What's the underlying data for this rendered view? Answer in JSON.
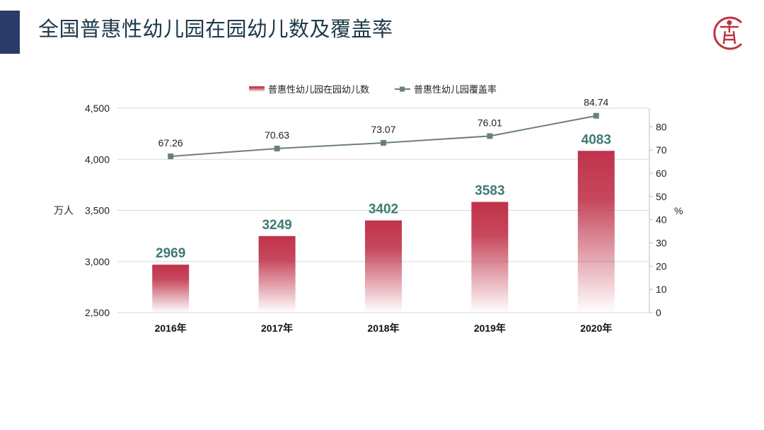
{
  "header": {
    "title": "全国普惠性幼儿园在园幼儿数及覆盖率",
    "accent_color": "#2b3a66",
    "logo_icon": "person-ladder-circle-logo",
    "logo_color": "#c0333f"
  },
  "chart_data": {
    "type": "bar+line",
    "title": "",
    "categories": [
      "2016年",
      "2017年",
      "2018年",
      "2019年",
      "2020年"
    ],
    "series": [
      {
        "name": "普惠性幼儿园在园幼儿数",
        "type": "bar",
        "axis": "left",
        "values": [
          2969,
          3249,
          3402,
          3583,
          4083
        ],
        "labels": [
          "2969",
          "3249",
          "3402",
          "3583",
          "4083"
        ],
        "color": "#c0334a"
      },
      {
        "name": "普惠性幼儿园覆盖率",
        "type": "line",
        "axis": "right",
        "values": [
          67.26,
          70.63,
          73.07,
          76.01,
          84.74
        ],
        "labels": [
          "67.26",
          "70.63",
          "73.07",
          "76.01",
          "84.74"
        ],
        "color": "#6b7f7c"
      }
    ],
    "left_axis": {
      "label": "万人",
      "ylim": [
        2500,
        4500
      ],
      "ticks": [
        "2,500",
        "3,000",
        "3,500",
        "4,000",
        "4,500"
      ],
      "tick_values": [
        2500,
        3000,
        3500,
        4000,
        4500
      ]
    },
    "right_axis": {
      "label": "%",
      "ylim": [
        0,
        88
      ],
      "ticks": [
        "0",
        "10",
        "20",
        "30",
        "40",
        "50",
        "60",
        "70",
        "80"
      ],
      "tick_values": [
        0,
        10,
        20,
        30,
        40,
        50,
        60,
        70,
        80
      ]
    },
    "grid": true,
    "legend": "top-center",
    "data_label_color": "#3f7a74"
  }
}
